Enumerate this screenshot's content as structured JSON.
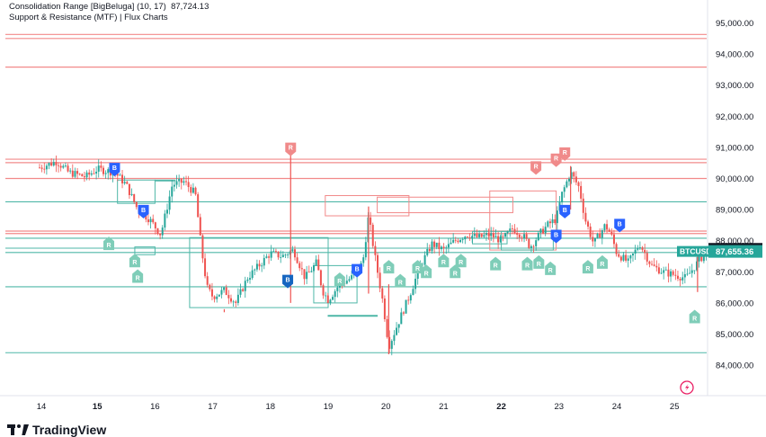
{
  "indicators": {
    "line1_name": "Consolidation Range [BigBeluga] (10, 17)",
    "line1_value": "87,724.13",
    "line2": "Support & Resistance (MTF) | Flux Charts"
  },
  "footer": {
    "brand": "TradingView"
  },
  "colors": {
    "up": "#26a69a",
    "down": "#ef5350",
    "resistance": "#f28a8a",
    "support": "#4fb7a8",
    "break_badge": "#2962ff",
    "break_badge_dark": "#1565c0",
    "retest_green": "#7fcdb8",
    "retest_red": "#f08a8a",
    "price_tag": "#131722",
    "symbol_tag": "#26a69a"
  },
  "chart_data": {
    "type": "candlestick",
    "symbol": "BTCUSD",
    "last_price_label": "87,655.36",
    "range_value_label": "87,724.13",
    "y_ticks": [
      "95,000.00",
      "94,000.00",
      "93,000.00",
      "92,000.00",
      "91,000.00",
      "90,000.00",
      "89,000.00",
      "88,000.00",
      "87,000.00",
      "86,000.00",
      "85,000.00",
      "84,000.00"
    ],
    "ylim": [
      83500,
      95500
    ],
    "x_ticks": [
      {
        "label": "14",
        "bold": false
      },
      {
        "label": "15",
        "bold": true
      },
      {
        "label": "16",
        "bold": false
      },
      {
        "label": "17",
        "bold": false
      },
      {
        "label": "18",
        "bold": false
      },
      {
        "label": "19",
        "bold": false
      },
      {
        "label": "20",
        "bold": false
      },
      {
        "label": "21",
        "bold": false
      },
      {
        "label": "22",
        "bold": true
      },
      {
        "label": "23",
        "bold": false
      },
      {
        "label": "24",
        "bold": false
      },
      {
        "label": "25",
        "bold": false
      }
    ],
    "resistance_levels": [
      94630,
      94500,
      93580,
      90620,
      90510,
      90000,
      88310,
      88230
    ],
    "support_levels": [
      89250,
      88080,
      87760,
      87620,
      86520,
      84400
    ],
    "price_path": [
      {
        "t": 0.0,
        "p": 90350
      },
      {
        "t": 0.3,
        "p": 90550
      },
      {
        "t": 0.5,
        "p": 90200
      },
      {
        "t": 0.8,
        "p": 90050
      },
      {
        "t": 1.0,
        "p": 90300
      },
      {
        "t": 1.3,
        "p": 90200
      },
      {
        "t": 1.5,
        "p": 89800
      },
      {
        "t": 1.7,
        "p": 89000
      },
      {
        "t": 1.9,
        "p": 88700
      },
      {
        "t": 2.1,
        "p": 88200
      },
      {
        "t": 2.3,
        "p": 89800
      },
      {
        "t": 2.5,
        "p": 89900
      },
      {
        "t": 2.7,
        "p": 89500
      },
      {
        "t": 2.8,
        "p": 87800
      },
      {
        "t": 2.9,
        "p": 86500
      },
      {
        "t": 3.0,
        "p": 86200
      },
      {
        "t": 3.2,
        "p": 86400
      },
      {
        "t": 3.4,
        "p": 86000
      },
      {
        "t": 3.6,
        "p": 86800
      },
      {
        "t": 3.8,
        "p": 87200
      },
      {
        "t": 4.0,
        "p": 87600
      },
      {
        "t": 4.2,
        "p": 87500
      },
      {
        "t": 4.4,
        "p": 87700
      },
      {
        "t": 4.6,
        "p": 86800
      },
      {
        "t": 4.8,
        "p": 87300
      },
      {
        "t": 4.9,
        "p": 86400
      },
      {
        "t": 5.0,
        "p": 86100
      },
      {
        "t": 5.2,
        "p": 86600
      },
      {
        "t": 5.4,
        "p": 86800
      },
      {
        "t": 5.6,
        "p": 87300
      },
      {
        "t": 5.7,
        "p": 88800
      },
      {
        "t": 5.8,
        "p": 87600
      },
      {
        "t": 5.95,
        "p": 86000
      },
      {
        "t": 6.05,
        "p": 84600
      },
      {
        "t": 6.2,
        "p": 85300
      },
      {
        "t": 6.4,
        "p": 86200
      },
      {
        "t": 6.6,
        "p": 87200
      },
      {
        "t": 6.8,
        "p": 87900
      },
      {
        "t": 7.0,
        "p": 87700
      },
      {
        "t": 7.2,
        "p": 88000
      },
      {
        "t": 7.4,
        "p": 88200
      },
      {
        "t": 7.6,
        "p": 88100
      },
      {
        "t": 7.8,
        "p": 88200
      },
      {
        "t": 8.0,
        "p": 88000
      },
      {
        "t": 8.2,
        "p": 88400
      },
      {
        "t": 8.4,
        "p": 88100
      },
      {
        "t": 8.5,
        "p": 87800
      },
      {
        "t": 8.7,
        "p": 88300
      },
      {
        "t": 8.8,
        "p": 88500
      },
      {
        "t": 8.95,
        "p": 88700
      },
      {
        "t": 9.05,
        "p": 89500
      },
      {
        "t": 9.2,
        "p": 90200
      },
      {
        "t": 9.35,
        "p": 89700
      },
      {
        "t": 9.45,
        "p": 88700
      },
      {
        "t": 9.6,
        "p": 87900
      },
      {
        "t": 9.8,
        "p": 88500
      },
      {
        "t": 9.9,
        "p": 88200
      },
      {
        "t": 10.0,
        "p": 87600
      },
      {
        "t": 10.2,
        "p": 87300
      },
      {
        "t": 10.4,
        "p": 87900
      },
      {
        "t": 10.6,
        "p": 87200
      },
      {
        "t": 10.8,
        "p": 87000
      },
      {
        "t": 11.0,
        "p": 86900
      },
      {
        "t": 11.2,
        "p": 86800
      },
      {
        "t": 11.4,
        "p": 87300
      },
      {
        "t": 11.55,
        "p": 87650
      }
    ],
    "markers": [
      {
        "label": "B",
        "kind": "break",
        "t": 1.3,
        "p": 90300
      },
      {
        "label": "B",
        "kind": "break",
        "t": 1.8,
        "p": 88950
      },
      {
        "label": "R",
        "kind": "retest-green",
        "t": 1.2,
        "p": 87900
      },
      {
        "label": "R",
        "kind": "retest-green",
        "t": 1.65,
        "p": 87350
      },
      {
        "label": "R",
        "kind": "retest-green",
        "t": 1.7,
        "p": 86850
      },
      {
        "label": "R",
        "kind": "retest-red",
        "t": 4.35,
        "p": 90950
      },
      {
        "label": "B",
        "kind": "break-dark",
        "t": 4.3,
        "p": 86700
      },
      {
        "label": "R",
        "kind": "retest-green",
        "t": 5.2,
        "p": 86750
      },
      {
        "label": "B",
        "kind": "break",
        "t": 5.5,
        "p": 87050
      },
      {
        "label": "R",
        "kind": "retest-green",
        "t": 6.05,
        "p": 87150
      },
      {
        "label": "R",
        "kind": "retest-green",
        "t": 6.25,
        "p": 86700
      },
      {
        "label": "R",
        "kind": "retest-green",
        "t": 6.55,
        "p": 87150
      },
      {
        "label": "R",
        "kind": "retest-green",
        "t": 6.7,
        "p": 87000
      },
      {
        "label": "R",
        "kind": "retest-green",
        "t": 7.0,
        "p": 87350
      },
      {
        "label": "R",
        "kind": "retest-green",
        "t": 7.2,
        "p": 87000
      },
      {
        "label": "R",
        "kind": "retest-green",
        "t": 7.3,
        "p": 87350
      },
      {
        "label": "R",
        "kind": "retest-green",
        "t": 7.9,
        "p": 87250
      },
      {
        "label": "R",
        "kind": "retest-green",
        "t": 8.45,
        "p": 87250
      },
      {
        "label": "R",
        "kind": "retest-green",
        "t": 8.65,
        "p": 87300
      },
      {
        "label": "R",
        "kind": "retest-green",
        "t": 8.85,
        "p": 87100
      },
      {
        "label": "R",
        "kind": "retest-red",
        "t": 8.6,
        "p": 90350
      },
      {
        "label": "R",
        "kind": "retest-red",
        "t": 8.95,
        "p": 90600
      },
      {
        "label": "R",
        "kind": "retest-red",
        "t": 9.1,
        "p": 90800
      },
      {
        "label": "B",
        "kind": "break",
        "t": 9.1,
        "p": 88950
      },
      {
        "label": "B",
        "kind": "break",
        "t": 8.95,
        "p": 88150
      },
      {
        "label": "R",
        "kind": "retest-green",
        "t": 9.5,
        "p": 87150
      },
      {
        "label": "R",
        "kind": "retest-green",
        "t": 9.75,
        "p": 87300
      },
      {
        "label": "B",
        "kind": "break",
        "t": 10.05,
        "p": 88500
      },
      {
        "label": "R",
        "kind": "retest-green",
        "t": 11.35,
        "p": 85550
      }
    ]
  }
}
